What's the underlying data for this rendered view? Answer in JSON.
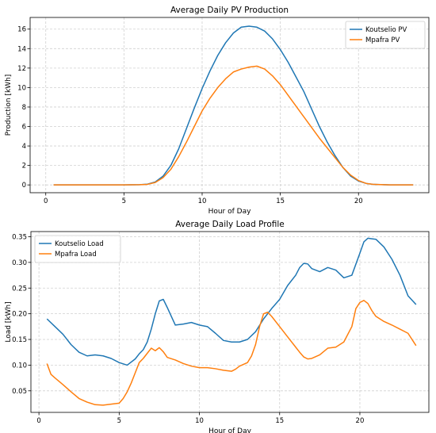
{
  "chart_data": [
    {
      "type": "line",
      "title": "Average Daily PV Production",
      "xlabel": "Hour of Day",
      "ylabel": "Production [kWh]",
      "xlim": [
        -1,
        24.5
      ],
      "ylim": [
        -0.8,
        17.2
      ],
      "xticks": [
        0,
        5,
        10,
        15,
        20
      ],
      "yticks": [
        0,
        2,
        4,
        6,
        8,
        10,
        12,
        14,
        16
      ],
      "grid": true,
      "legend": "top-right",
      "series": [
        {
          "name": "Koutselio PV",
          "color": "#1f77b4",
          "x": [
            0.5,
            1,
            2,
            3,
            4,
            5,
            6,
            6.5,
            7,
            7.5,
            8,
            8.5,
            9,
            9.5,
            10,
            10.5,
            11,
            11.5,
            12,
            12.5,
            13,
            13.5,
            14,
            14.5,
            15,
            15.5,
            16,
            16.5,
            17,
            17.5,
            18,
            18.5,
            19,
            19.5,
            20,
            20.5,
            21,
            22,
            23,
            23.5
          ],
          "y": [
            0,
            0,
            0,
            0,
            0,
            0,
            0.02,
            0.08,
            0.3,
            0.9,
            2.0,
            3.7,
            5.8,
            7.9,
            9.9,
            11.7,
            13.3,
            14.6,
            15.6,
            16.2,
            16.3,
            16.2,
            15.8,
            15.0,
            13.9,
            12.6,
            11.1,
            9.6,
            7.8,
            6.0,
            4.4,
            3.0,
            1.8,
            0.9,
            0.4,
            0.15,
            0.05,
            0,
            0,
            0
          ]
        },
        {
          "name": "Mpafra PV",
          "color": "#ff7f0e",
          "x": [
            0.5,
            1,
            2,
            3,
            4,
            5,
            6,
            6.5,
            7,
            7.5,
            8,
            8.5,
            9,
            9.5,
            10,
            10.5,
            11,
            11.5,
            12,
            12.5,
            13,
            13.5,
            14,
            14.5,
            15,
            15.5,
            16,
            16.5,
            17,
            17.5,
            18,
            18.5,
            19,
            19.5,
            20,
            20.5,
            21,
            22,
            23,
            23.5
          ],
          "y": [
            0,
            0,
            0,
            0,
            0,
            0,
            0.02,
            0.06,
            0.25,
            0.75,
            1.6,
            2.9,
            4.4,
            6.0,
            7.6,
            8.9,
            10.0,
            10.9,
            11.6,
            11.9,
            12.1,
            12.2,
            11.9,
            11.2,
            10.3,
            9.2,
            8.1,
            7.0,
            5.9,
            4.8,
            3.8,
            2.8,
            1.8,
            1.0,
            0.45,
            0.15,
            0.05,
            0,
            0,
            0
          ]
        }
      ]
    },
    {
      "type": "line",
      "title": "Average Daily Load Profile",
      "xlabel": "Hour of Day",
      "ylabel": "Load [kWh]",
      "xlim": [
        -0.5,
        24.3
      ],
      "ylim": [
        0.008,
        0.36
      ],
      "xticks": [
        0,
        5,
        10,
        15,
        20
      ],
      "yticks": [
        0.05,
        0.1,
        0.15,
        0.2,
        0.25,
        0.3,
        0.35
      ],
      "grid": true,
      "legend": "top-left",
      "series": [
        {
          "name": "Koutselio Load",
          "color": "#1f77b4",
          "x": [
            0.5,
            1,
            1.5,
            2,
            2.5,
            3,
            3.5,
            4,
            4.5,
            5,
            5.5,
            6,
            6.25,
            6.5,
            6.75,
            7,
            7.25,
            7.5,
            7.75,
            8,
            8.25,
            8.5,
            9,
            9.5,
            10,
            10.5,
            11,
            11.5,
            12,
            12.5,
            13,
            13.5,
            14,
            14.5,
            15,
            15.5,
            16,
            16.25,
            16.5,
            16.75,
            17,
            17.5,
            18,
            18.5,
            19,
            19.5,
            20,
            20.25,
            20.5,
            20.75,
            21,
            21.5,
            22,
            22.5,
            23,
            23.5
          ],
          "y": [
            0.19,
            0.175,
            0.16,
            0.14,
            0.125,
            0.118,
            0.12,
            0.118,
            0.113,
            0.105,
            0.1,
            0.112,
            0.122,
            0.13,
            0.145,
            0.17,
            0.2,
            0.225,
            0.228,
            0.212,
            0.195,
            0.178,
            0.18,
            0.183,
            0.178,
            0.175,
            0.162,
            0.148,
            0.145,
            0.145,
            0.15,
            0.165,
            0.19,
            0.21,
            0.228,
            0.255,
            0.275,
            0.29,
            0.298,
            0.297,
            0.288,
            0.282,
            0.29,
            0.285,
            0.27,
            0.275,
            0.318,
            0.34,
            0.347,
            0.346,
            0.345,
            0.33,
            0.306,
            0.275,
            0.235,
            0.218
          ]
        },
        {
          "name": "Mpafra Load",
          "color": "#ff7f0e",
          "x": [
            0.5,
            0.75,
            1,
            1.5,
            2,
            2.5,
            3,
            3.5,
            4,
            4.5,
            5,
            5.25,
            5.5,
            5.75,
            6,
            6.25,
            6.5,
            6.75,
            7,
            7.25,
            7.5,
            7.75,
            8,
            8.5,
            9,
            9.5,
            10,
            10.5,
            11,
            11.5,
            12,
            12.25,
            12.5,
            13,
            13.25,
            13.5,
            13.75,
            14,
            14.25,
            14.5,
            15,
            15.5,
            16,
            16.25,
            16.5,
            16.75,
            17,
            17.5,
            18,
            18.5,
            19,
            19.5,
            19.75,
            20,
            20.25,
            20.5,
            20.75,
            21,
            21.5,
            22,
            22.5,
            23,
            23.5
          ],
          "y": [
            0.103,
            0.082,
            0.075,
            0.062,
            0.048,
            0.035,
            0.028,
            0.023,
            0.022,
            0.024,
            0.026,
            0.035,
            0.048,
            0.065,
            0.085,
            0.105,
            0.113,
            0.123,
            0.133,
            0.128,
            0.134,
            0.126,
            0.115,
            0.11,
            0.103,
            0.098,
            0.095,
            0.095,
            0.093,
            0.09,
            0.088,
            0.092,
            0.098,
            0.105,
            0.118,
            0.14,
            0.175,
            0.2,
            0.203,
            0.195,
            0.175,
            0.155,
            0.135,
            0.125,
            0.116,
            0.112,
            0.113,
            0.12,
            0.133,
            0.135,
            0.145,
            0.175,
            0.21,
            0.222,
            0.226,
            0.22,
            0.206,
            0.195,
            0.185,
            0.178,
            0.17,
            0.162,
            0.138
          ]
        }
      ]
    }
  ]
}
